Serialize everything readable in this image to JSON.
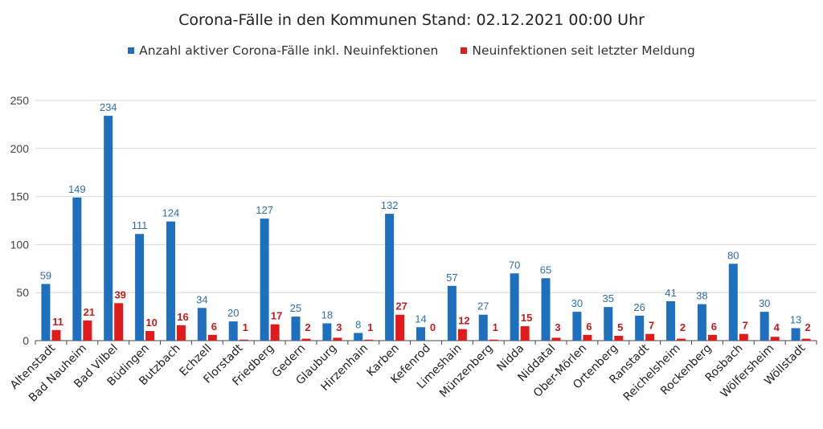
{
  "colors": {
    "active": "#1f6fbf",
    "new": "#e01b1b",
    "active_label": "#2f6fab",
    "new_label": "#c21d1d",
    "grid": "#d9d9d9",
    "axis": "#444444"
  },
  "chart_data": {
    "type": "bar",
    "title": "Corona-Fälle in den Kommunen Stand: 02.12.2021 00:00 Uhr",
    "xlabel": "",
    "ylabel": "",
    "ylim": [
      0,
      250
    ],
    "yticks": [
      0,
      50,
      100,
      150,
      200,
      250
    ],
    "grid": true,
    "legend_position": "top",
    "categories": [
      "Altenstadt",
      "Bad Nauheim",
      "Bad Vilbel",
      "Büdingen",
      "Butzbach",
      "Echzell",
      "Florstadt",
      "Friedberg",
      "Gedern",
      "Glauburg",
      "Hirzenhain",
      "Karben",
      "Kefenrod",
      "Limeshain",
      "Münzenberg",
      "Nidda",
      "Niddatal",
      "Ober-Mörlen",
      "Ortenberg",
      "Ranstadt",
      "Reichelsheim",
      "Rockenberg",
      "Rosbach",
      "Wölfersheim",
      "Wöllstadt"
    ],
    "series": [
      {
        "name": "Anzahl aktiver Corona-Fälle inkl. Neuinfektionen",
        "values": [
          59,
          149,
          234,
          111,
          124,
          34,
          20,
          127,
          25,
          18,
          8,
          132,
          14,
          57,
          27,
          70,
          65,
          30,
          35,
          26,
          41,
          38,
          80,
          30,
          13
        ]
      },
      {
        "name": "Neuinfektionen seit letzter Meldung",
        "values": [
          11,
          21,
          39,
          10,
          16,
          6,
          1,
          17,
          2,
          3,
          1,
          27,
          0,
          12,
          1,
          15,
          3,
          6,
          5,
          7,
          2,
          6,
          7,
          4,
          2
        ]
      }
    ]
  }
}
